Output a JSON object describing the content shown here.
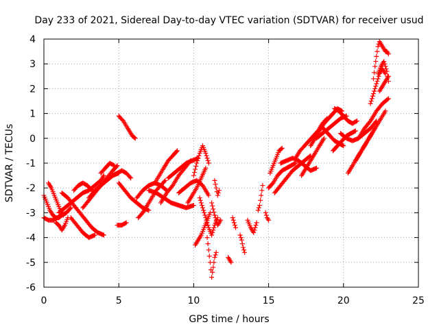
{
  "chart_data": {
    "type": "scatter",
    "title": "Day 233 of 2021, Sidereal Day-to-day VTEC variation (SDTVAR) for receiver usud",
    "xlabel": "GPS time / hours",
    "ylabel": "SDTVAR / TECUs",
    "xlim": [
      0,
      25
    ],
    "ylim": [
      -6,
      4
    ],
    "xticks": [
      "0",
      "5",
      "10",
      "15",
      "20",
      "25"
    ],
    "yticks": [
      "-6",
      "-5",
      "-4",
      "-3",
      "-2",
      "-1",
      "0",
      "1",
      "2",
      "3",
      "4"
    ],
    "grid": true,
    "legend": "none",
    "marker": "plus",
    "color": "#ff0000",
    "tracks": [
      {
        "x": [
          0.0,
          0.2,
          0.4,
          0.6,
          0.8,
          1.0,
          1.2
        ],
        "y": [
          -2.3,
          -2.6,
          -2.9,
          -3.1,
          -3.2,
          -3.2,
          -3.1
        ]
      },
      {
        "x": [
          0.0,
          0.3,
          0.6,
          0.9,
          1.2,
          1.5,
          1.8
        ],
        "y": [
          -3.2,
          -3.3,
          -3.3,
          -3.2,
          -3.1,
          -3.0,
          -2.8
        ]
      },
      {
        "x": [
          0.3,
          0.5,
          0.7,
          0.9,
          1.1,
          1.3
        ],
        "y": [
          -1.8,
          -2.0,
          -2.3,
          -2.6,
          -2.9,
          -3.1
        ]
      },
      {
        "x": [
          0.8,
          1.0,
          1.2,
          1.4,
          1.6
        ],
        "y": [
          -3.4,
          -3.5,
          -3.7,
          -3.5,
          -3.2
        ]
      },
      {
        "x": [
          1.0,
          1.4,
          1.8,
          2.2,
          2.6,
          3.0,
          3.4,
          3.8,
          4.0
        ],
        "y": [
          -3.0,
          -2.8,
          -2.6,
          -2.4,
          -2.2,
          -2.1,
          -1.9,
          -1.7,
          -1.5
        ]
      },
      {
        "x": [
          1.2,
          1.6,
          2.0,
          2.4,
          2.8,
          3.2,
          3.6,
          4.0
        ],
        "y": [
          -2.2,
          -2.4,
          -2.7,
          -3.0,
          -3.3,
          -3.6,
          -3.8,
          -3.9
        ]
      },
      {
        "x": [
          1.8,
          2.2,
          2.6,
          3.0,
          3.4
        ],
        "y": [
          -3.2,
          -3.5,
          -3.8,
          -4.0,
          -3.9
        ]
      },
      {
        "x": [
          2.0,
          2.3,
          2.6,
          2.9,
          3.2
        ],
        "y": [
          -2.1,
          -1.9,
          -1.8,
          -1.9,
          -2.1
        ]
      },
      {
        "x": [
          2.6,
          3.0,
          3.4,
          3.8,
          4.2,
          4.6,
          4.9
        ],
        "y": [
          -2.8,
          -2.5,
          -2.2,
          -1.9,
          -1.6,
          -1.3,
          -1.1
        ]
      },
      {
        "x": [
          3.0,
          3.4,
          3.8,
          4.2,
          4.6,
          5.0
        ],
        "y": [
          -2.4,
          -2.1,
          -1.9,
          -1.7,
          -1.5,
          -1.4
        ]
      },
      {
        "x": [
          3.8,
          4.1,
          4.4,
          4.7
        ],
        "y": [
          -1.4,
          -1.2,
          -1.0,
          -1.1
        ]
      },
      {
        "x": [
          4.6,
          4.9,
          5.2,
          5.5,
          5.8
        ],
        "y": [
          -1.5,
          -1.4,
          -1.3,
          -1.4,
          -1.6
        ]
      },
      {
        "x": [
          5.0,
          5.3,
          5.6,
          5.9,
          6.1
        ],
        "y": [
          0.9,
          0.7,
          0.4,
          0.1,
          0.0
        ]
      },
      {
        "x": [
          4.9,
          5.2,
          5.5
        ],
        "y": [
          -3.5,
          -3.5,
          -3.4
        ]
      },
      {
        "x": [
          5.0,
          5.4,
          5.8,
          6.2,
          6.6,
          7.0
        ],
        "y": [
          -1.8,
          -2.1,
          -2.4,
          -2.6,
          -2.8,
          -2.9
        ]
      },
      {
        "x": [
          6.2,
          6.6,
          7.0,
          7.4,
          7.8,
          8.2
        ],
        "y": [
          -2.4,
          -2.1,
          -1.9,
          -1.8,
          -1.9,
          -2.1
        ]
      },
      {
        "x": [
          6.3,
          6.6,
          6.9,
          7.2,
          7.5,
          7.8,
          8.1
        ],
        "y": [
          -3.2,
          -3.0,
          -2.7,
          -2.4,
          -2.1,
          -1.9,
          -1.7
        ]
      },
      {
        "x": [
          7.0,
          7.5,
          8.0,
          8.5,
          9.0,
          9.5,
          10.0
        ],
        "y": [
          -2.1,
          -2.2,
          -2.4,
          -2.6,
          -2.7,
          -2.8,
          -2.7
        ]
      },
      {
        "x": [
          7.4,
          7.7,
          8.0,
          8.3,
          8.6,
          8.9
        ],
        "y": [
          -1.8,
          -1.5,
          -1.2,
          -0.9,
          -0.7,
          -0.5
        ]
      },
      {
        "x": [
          7.8,
          8.2,
          8.6,
          9.0,
          9.4,
          9.8
        ],
        "y": [
          -2.6,
          -2.2,
          -1.9,
          -1.5,
          -1.2,
          -0.9
        ]
      },
      {
        "x": [
          8.3,
          8.7,
          9.1,
          9.5,
          9.9,
          10.3
        ],
        "y": [
          -1.6,
          -1.4,
          -1.2,
          -1.0,
          -0.9,
          -0.8
        ]
      },
      {
        "x": [
          9.0,
          9.4,
          9.8,
          10.2,
          10.6,
          11.0
        ],
        "y": [
          -2.2,
          -2.0,
          -1.8,
          -1.7,
          -1.9,
          -2.3
        ]
      },
      {
        "x": [
          9.6,
          9.9,
          10.2,
          10.5,
          10.8
        ],
        "y": [
          -2.6,
          -2.3,
          -2.0,
          -1.6,
          -1.2
        ]
      },
      {
        "x": [
          10.0,
          10.2,
          10.4,
          10.6,
          10.8,
          11.0
        ],
        "y": [
          -1.5,
          -1.0,
          -0.6,
          -0.3,
          -0.6,
          -1.0
        ]
      },
      {
        "x": [
          10.1,
          10.3,
          10.5,
          10.7,
          10.9,
          11.1
        ],
        "y": [
          -4.3,
          -4.1,
          -3.9,
          -3.6,
          -3.3,
          -3.0
        ]
      },
      {
        "x": [
          10.4,
          10.6,
          10.8,
          11.0,
          11.2,
          11.4,
          11.6
        ],
        "y": [
          -2.4,
          -2.8,
          -3.2,
          -3.6,
          -3.9,
          -3.5,
          -3.2
        ]
      },
      {
        "x": [
          10.9,
          11.0,
          11.1,
          11.2,
          11.3,
          11.4,
          11.5
        ],
        "y": [
          -4.0,
          -4.5,
          -5.0,
          -5.6,
          -5.2,
          -4.8,
          -4.6
        ]
      },
      {
        "x": [
          11.2,
          11.4,
          11.6,
          11.8
        ],
        "y": [
          -2.6,
          -3.1,
          -3.5,
          -3.3
        ]
      },
      {
        "x": [
          11.4,
          11.5,
          11.6,
          11.7
        ],
        "y": [
          -1.7,
          -2.0,
          -2.3,
          -2.1
        ]
      },
      {
        "x": [
          12.3,
          12.4,
          12.5
        ],
        "y": [
          -4.8,
          -4.9,
          -5.0
        ]
      },
      {
        "x": [
          12.6,
          12.7,
          12.8
        ],
        "y": [
          -3.2,
          -3.4,
          -3.6
        ]
      },
      {
        "x": [
          13.1,
          13.2,
          13.3,
          13.4
        ],
        "y": [
          -3.9,
          -4.1,
          -4.4,
          -4.6
        ]
      },
      {
        "x": [
          13.6,
          13.8,
          14.0,
          14.2
        ],
        "y": [
          -3.3,
          -3.6,
          -3.8,
          -3.4
        ]
      },
      {
        "x": [
          14.3,
          14.4,
          14.5,
          14.6
        ],
        "y": [
          -2.9,
          -2.7,
          -2.3,
          -1.9
        ]
      },
      {
        "x": [
          14.8,
          14.9,
          15.0
        ],
        "y": [
          -3.0,
          -3.2,
          -3.3
        ]
      },
      {
        "x": [
          15.0,
          15.3,
          15.6,
          15.9,
          16.2,
          16.5,
          16.8
        ],
        "y": [
          -2.0,
          -1.8,
          -1.5,
          -1.3,
          -1.2,
          -1.1,
          -1.0
        ]
      },
      {
        "x": [
          15.1,
          15.3,
          15.5,
          15.7,
          15.9
        ],
        "y": [
          -1.4,
          -1.1,
          -0.8,
          -0.5,
          -0.4
        ]
      },
      {
        "x": [
          15.4,
          15.8,
          16.2,
          16.6,
          17.0,
          17.4,
          17.8
        ],
        "y": [
          -2.2,
          -1.9,
          -1.6,
          -1.3,
          -1.1,
          -0.9,
          -0.7
        ]
      },
      {
        "x": [
          15.8,
          16.2,
          16.6,
          17.0,
          17.4,
          17.8,
          18.2
        ],
        "y": [
          -1.0,
          -0.9,
          -0.8,
          -0.9,
          -1.1,
          -1.3,
          -1.2
        ]
      },
      {
        "x": [
          16.8,
          17.1,
          17.4,
          17.7,
          18.0,
          18.3,
          18.6,
          18.9
        ],
        "y": [
          -0.8,
          -0.5,
          -0.3,
          -0.1,
          0.1,
          0.3,
          0.6,
          0.8
        ]
      },
      {
        "x": [
          17.2,
          17.5,
          17.8,
          18.1,
          18.4,
          18.7
        ],
        "y": [
          -1.5,
          -1.2,
          -0.9,
          -0.6,
          -0.3,
          0.0
        ]
      },
      {
        "x": [
          17.8,
          18.1,
          18.4,
          18.7,
          19.0,
          19.3,
          19.6,
          19.9
        ],
        "y": [
          -0.3,
          0.0,
          0.3,
          0.6,
          0.8,
          1.0,
          1.2,
          1.1
        ]
      },
      {
        "x": [
          18.2,
          18.6,
          19.0,
          19.4,
          19.8,
          20.2
        ],
        "y": [
          0.0,
          0.2,
          0.4,
          0.6,
          0.8,
          0.9
        ]
      },
      {
        "x": [
          18.5,
          18.8,
          19.1,
          19.4,
          19.7,
          20.0
        ],
        "y": [
          0.5,
          0.3,
          0.1,
          -0.1,
          -0.2,
          -0.3
        ]
      },
      {
        "x": [
          19.3,
          19.6,
          19.9,
          20.2,
          20.5,
          20.8
        ],
        "y": [
          -0.5,
          -0.3,
          -0.1,
          0.1,
          0.2,
          0.3
        ]
      },
      {
        "x": [
          19.8,
          20.2,
          20.6,
          21.0,
          21.4,
          21.8,
          22.2
        ],
        "y": [
          0.2,
          0.0,
          -0.1,
          0.0,
          0.2,
          0.4,
          0.7
        ]
      },
      {
        "x": [
          19.4,
          19.7,
          20.0,
          20.3,
          20.6,
          20.9
        ],
        "y": [
          1.2,
          1.1,
          0.9,
          0.7,
          0.6,
          0.7
        ]
      },
      {
        "x": [
          20.3,
          20.6,
          20.9,
          21.2,
          21.5,
          21.8,
          22.1
        ],
        "y": [
          -1.4,
          -1.1,
          -0.8,
          -0.5,
          -0.2,
          0.1,
          0.4
        ]
      },
      {
        "x": [
          20.8,
          21.2,
          21.6,
          22.0,
          22.4,
          22.8
        ],
        "y": [
          -0.9,
          -0.5,
          -0.1,
          0.3,
          0.7,
          1.1
        ]
      },
      {
        "x": [
          21.0,
          21.4,
          21.8,
          22.2,
          22.6,
          23.0
        ],
        "y": [
          0.0,
          0.4,
          0.7,
          1.1,
          1.4,
          1.6
        ]
      },
      {
        "x": [
          21.8,
          22.0,
          22.2,
          22.4,
          22.6,
          22.8
        ],
        "y": [
          1.4,
          1.8,
          2.2,
          2.6,
          2.8,
          2.6
        ]
      },
      {
        "x": [
          22.0,
          22.1,
          22.2,
          22.3,
          22.4,
          22.5,
          22.6,
          22.7,
          22.8,
          22.9,
          23.0
        ],
        "y": [
          2.4,
          2.9,
          3.3,
          3.7,
          3.9,
          3.8,
          3.7,
          3.6,
          3.5,
          3.5,
          3.4
        ]
      },
      {
        "x": [
          22.3,
          22.5,
          22.7,
          22.9,
          23.0
        ],
        "y": [
          2.6,
          2.9,
          3.1,
          2.7,
          2.3
        ]
      },
      {
        "x": [
          22.4,
          22.6,
          22.8,
          23.0
        ],
        "y": [
          1.9,
          2.1,
          2.3,
          2.5
        ]
      }
    ]
  }
}
